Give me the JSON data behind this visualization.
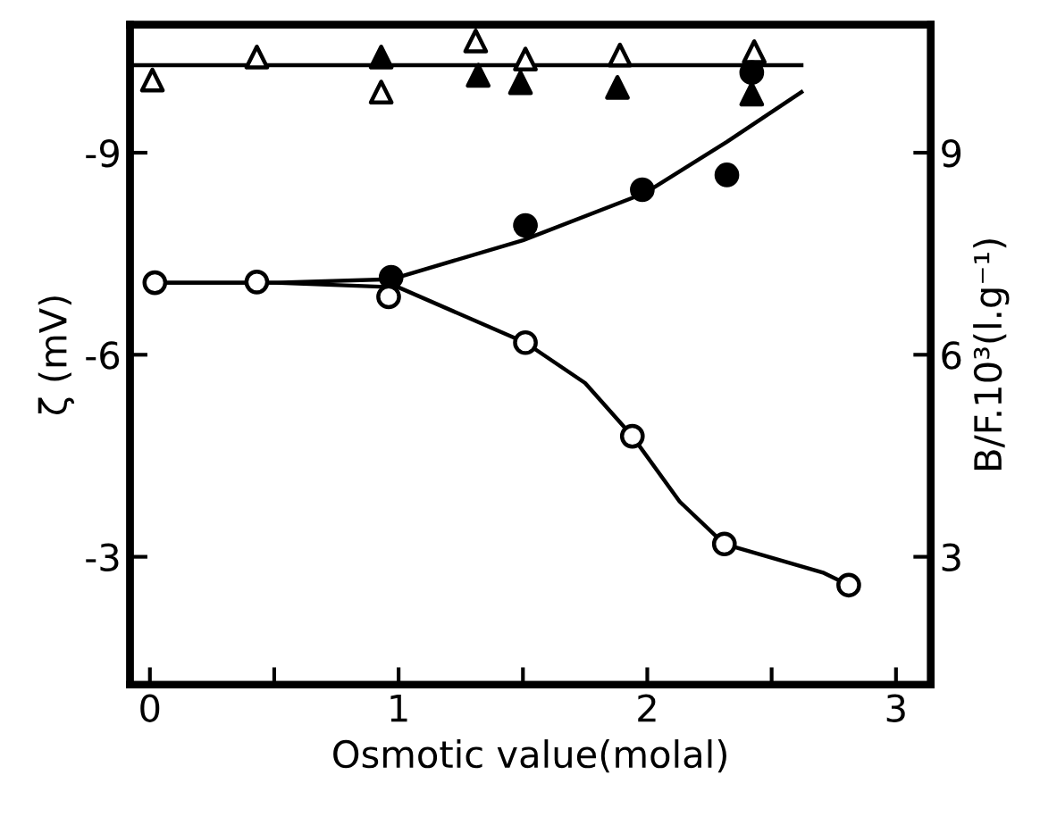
{
  "chart_data": {
    "type": "scatter",
    "xlabel": "Osmotic value(molal)",
    "ylabel": "ζ (mV)",
    "y2label": "B/F.10³(l.g⁻¹)",
    "xlim": [
      -0.08,
      3.14
    ],
    "xticks": [
      0,
      {
        "value": 0.5,
        "label": null
      },
      1,
      {
        "value": 1.5,
        "label": null
      },
      2,
      {
        "value": 2.5,
        "label": null
      },
      3
    ],
    "ylim": [
      -1.1,
      -10.9
    ],
    "yticks": [
      -3,
      -6,
      -9
    ],
    "y2lim": [
      1.1,
      10.9
    ],
    "y2ticks": [
      3,
      6,
      9
    ],
    "grid": false,
    "legend": false,
    "series": [
      {
        "type": "line",
        "color": "#000000",
        "marker": "none",
        "line_style": "solid",
        "x": [
          -0.08,
          2.62
        ],
        "values": [
          -10.3,
          -10.3
        ]
      },
      {
        "type": "line",
        "color": "#000000",
        "marker": "none",
        "line_style": "solid",
        "x": [
          0.02,
          0.5,
          0.97,
          1.5,
          1.99,
          2.32,
          2.62
        ],
        "values": [
          -7.07,
          -7.07,
          -7.12,
          -7.7,
          -8.4,
          -9.16,
          -9.9
        ]
      },
      {
        "type": "line",
        "color": "#000000",
        "marker": "none",
        "line_style": "solid",
        "x": [
          0.02,
          0.5,
          1.0,
          1.51,
          1.75,
          1.94,
          2.13,
          2.31,
          2.71,
          2.81
        ],
        "values": [
          -7.07,
          -7.07,
          -7.0,
          -6.18,
          -5.58,
          -4.79,
          -3.82,
          -3.19,
          -2.76,
          -2.58
        ]
      },
      {
        "color": "#ffffff",
        "marker": "triangle",
        "x": [
          0.01,
          0.43,
          0.93,
          1.31,
          1.51,
          1.89,
          2.43
        ],
        "values": [
          -10.08,
          -10.42,
          -9.9,
          -10.66,
          -10.39,
          -10.45,
          -10.5
        ]
      },
      {
        "color": "#000000",
        "marker": "triangle",
        "x": [
          0.93,
          1.32,
          1.49,
          1.88,
          2.42
        ],
        "values": [
          -10.42,
          -10.15,
          -10.04,
          -9.97,
          -9.87
        ]
      },
      {
        "color": "#000000",
        "marker": "circle",
        "x": [
          0.97,
          1.51,
          1.98,
          2.32,
          2.42
        ],
        "values": [
          -7.15,
          -7.92,
          -8.45,
          -8.67,
          -10.19
        ]
      },
      {
        "color": "#ffffff",
        "marker": "circle",
        "x": [
          0.02,
          0.43,
          0.96,
          1.51,
          1.94,
          2.31,
          2.81
        ],
        "values": [
          -7.07,
          -7.08,
          -6.86,
          -6.18,
          -4.79,
          -3.19,
          -2.58
        ]
      }
    ]
  }
}
